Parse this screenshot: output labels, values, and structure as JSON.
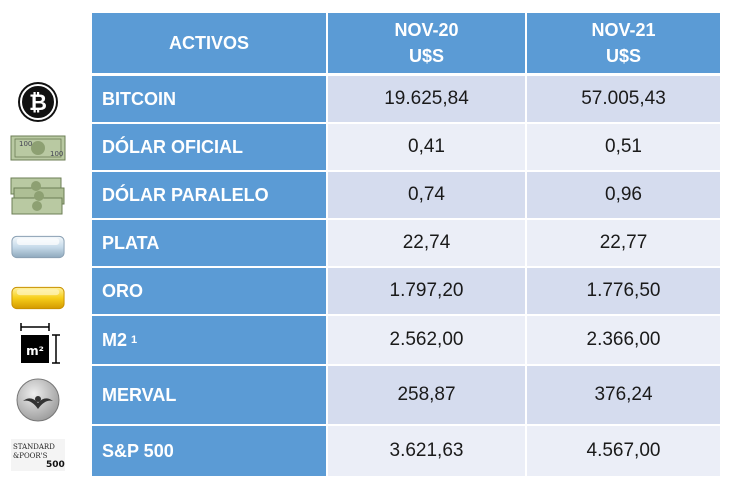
{
  "header": {
    "asset_col": "ACTIVOS",
    "col1_line1": "NOV-20",
    "col1_line2": "U$S",
    "col2_line1": "NOV-21",
    "col2_line2": "U$S"
  },
  "rows": [
    {
      "label": "BITCOIN",
      "icon": "bitcoin-icon",
      "nov20": "19.625,84",
      "nov21": "57.005,43"
    },
    {
      "label": "DÓLAR OFICIAL",
      "icon": "dollar-bill-icon",
      "nov20": "0,41",
      "nov21": "0,51"
    },
    {
      "label": "DÓLAR PARALELO",
      "icon": "dollar-stack-icon",
      "nov20": "0,74",
      "nov21": "0,96"
    },
    {
      "label": "PLATA",
      "icon": "silver-bar-icon",
      "nov20": "22,74",
      "nov21": "22,77"
    },
    {
      "label": "ORO",
      "icon": "gold-bar-icon",
      "nov20": "1.797,20",
      "nov21": "1.776,50"
    },
    {
      "label": "M2",
      "label_sup": "1",
      "icon": "square-meter-icon",
      "nov20": "2.562,00",
      "nov21": "2.366,00"
    },
    {
      "label": "MERVAL",
      "icon": "merval-logo-icon",
      "nov20": "258,87",
      "nov21": "376,24"
    },
    {
      "label": "S&P 500",
      "icon": "sp500-logo-icon",
      "nov20": "3.621,63",
      "nov21": "4.567,00"
    }
  ],
  "icons": {
    "m2_text": "m²",
    "sp_line1": "STANDARD",
    "sp_line2": "&POOR'S",
    "sp_line3": "500"
  },
  "colors": {
    "header_bg": "#5b9bd5",
    "row_odd": "#d5dcee",
    "row_even": "#ebeef7",
    "gold": "#f7cf1a",
    "silver": "#c7dbea"
  }
}
